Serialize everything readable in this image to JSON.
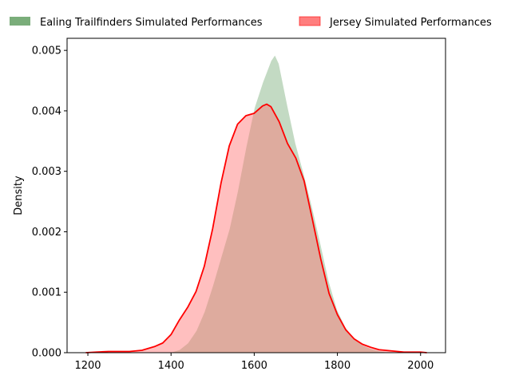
{
  "chart_data": {
    "type": "area",
    "title": "",
    "xlabel": "",
    "ylabel": "Density",
    "xlim": [
      1150,
      2060
    ],
    "ylim": [
      0,
      0.0052
    ],
    "xticks": [
      1200,
      1400,
      1600,
      1800,
      2000
    ],
    "xtick_labels": [
      "1200",
      "1400",
      "1600",
      "1800",
      "2000"
    ],
    "yticks": [
      0,
      0.001,
      0.002,
      0.003,
      0.004,
      0.005
    ],
    "ytick_labels": [
      "0.000",
      "0.001",
      "0.002",
      "0.003",
      "0.004",
      "0.005"
    ],
    "grid": false,
    "legend_position": "top",
    "series": [
      {
        "name": "Ealing Trailfinders Simulated Performances",
        "fill_color": "#7aad7a",
        "edge_color": "#ffffff",
        "fill_opacity": 0.45,
        "x": [
          1390,
          1400,
          1420,
          1440,
          1460,
          1480,
          1500,
          1520,
          1540,
          1560,
          1580,
          1600,
          1620,
          1640,
          1650,
          1660,
          1680,
          1700,
          1720,
          1740,
          1760,
          1780,
          1800,
          1820,
          1840,
          1860,
          1880,
          1900,
          1920,
          1960
        ],
        "y": [
          0.0,
          1e-05,
          5e-05,
          0.00016,
          0.00036,
          0.00068,
          0.00111,
          0.00158,
          0.00205,
          0.00268,
          0.0034,
          0.00405,
          0.00447,
          0.00483,
          0.00493,
          0.00478,
          0.0041,
          0.00346,
          0.00295,
          0.0024,
          0.0018,
          0.00118,
          0.00071,
          0.00042,
          0.00024,
          0.00013,
          7e-05,
          3e-05,
          1e-05,
          0.0
        ]
      },
      {
        "name": "Jersey Simulated Performances",
        "fill_color": "#ff7070",
        "edge_color": "#ff0000",
        "fill_opacity": 0.45,
        "x": [
          1195,
          1220,
          1250,
          1280,
          1300,
          1330,
          1360,
          1380,
          1400,
          1420,
          1440,
          1460,
          1480,
          1500,
          1520,
          1540,
          1560,
          1580,
          1600,
          1620,
          1630,
          1640,
          1660,
          1680,
          1700,
          1720,
          1740,
          1760,
          1780,
          1800,
          1820,
          1840,
          1860,
          1880,
          1900,
          1930,
          1960,
          2000,
          2015
        ],
        "y": [
          0.0,
          1e-05,
          2e-05,
          2e-05,
          2e-05,
          4e-05,
          0.0001,
          0.00016,
          0.0003,
          0.00054,
          0.00075,
          0.00101,
          0.00143,
          0.00205,
          0.0028,
          0.00342,
          0.00378,
          0.00392,
          0.00396,
          0.00408,
          0.00411,
          0.00407,
          0.00382,
          0.00346,
          0.00322,
          0.00284,
          0.0022,
          0.00155,
          0.00098,
          0.00063,
          0.00038,
          0.00023,
          0.00014,
          9e-05,
          5e-05,
          3e-05,
          1e-05,
          1e-05,
          0.0
        ]
      }
    ]
  }
}
